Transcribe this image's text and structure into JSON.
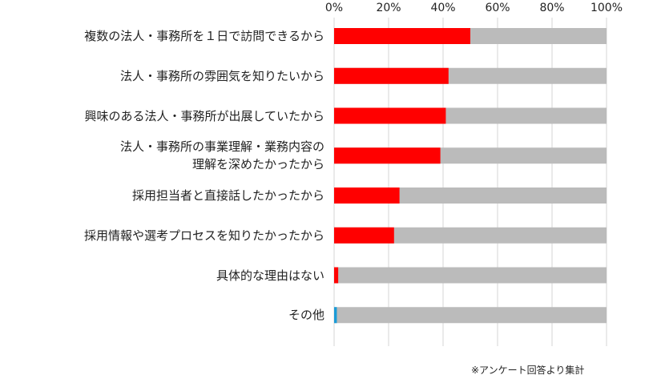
{
  "chart_data": {
    "type": "hbar",
    "categories": [
      "複数の法人・事務所を１日で訪問できるから",
      "法人・事務所の雰囲気を知りたいから",
      "興味のある法人・事務所が出展していたから",
      "法人・事務所の事業理解・業務内容の\n理解を深めたかったから",
      "採用担当者と直接話したかったから",
      "採用情報や選考プロセスを知りたかったから",
      "具体的な理由はない",
      "その他"
    ],
    "values": [
      50,
      42,
      41,
      39,
      24,
      22,
      1.5,
      1
    ],
    "colors": [
      "#ff0000",
      "#ff0000",
      "#ff0000",
      "#ff0000",
      "#ff0000",
      "#ff0000",
      "#ff0000",
      "#1a9bd7"
    ],
    "track_color": "#bbbbbb",
    "xlim": [
      0,
      100
    ],
    "xticks": [
      {
        "value": 0,
        "label": "0%"
      },
      {
        "value": 20,
        "label": "20%"
      },
      {
        "value": 40,
        "label": "40%"
      },
      {
        "value": 60,
        "label": "60%"
      },
      {
        "value": 80,
        "label": "80%"
      },
      {
        "value": 100,
        "label": "100%"
      }
    ],
    "grid": true,
    "note": "※アンケート回答より集計"
  }
}
